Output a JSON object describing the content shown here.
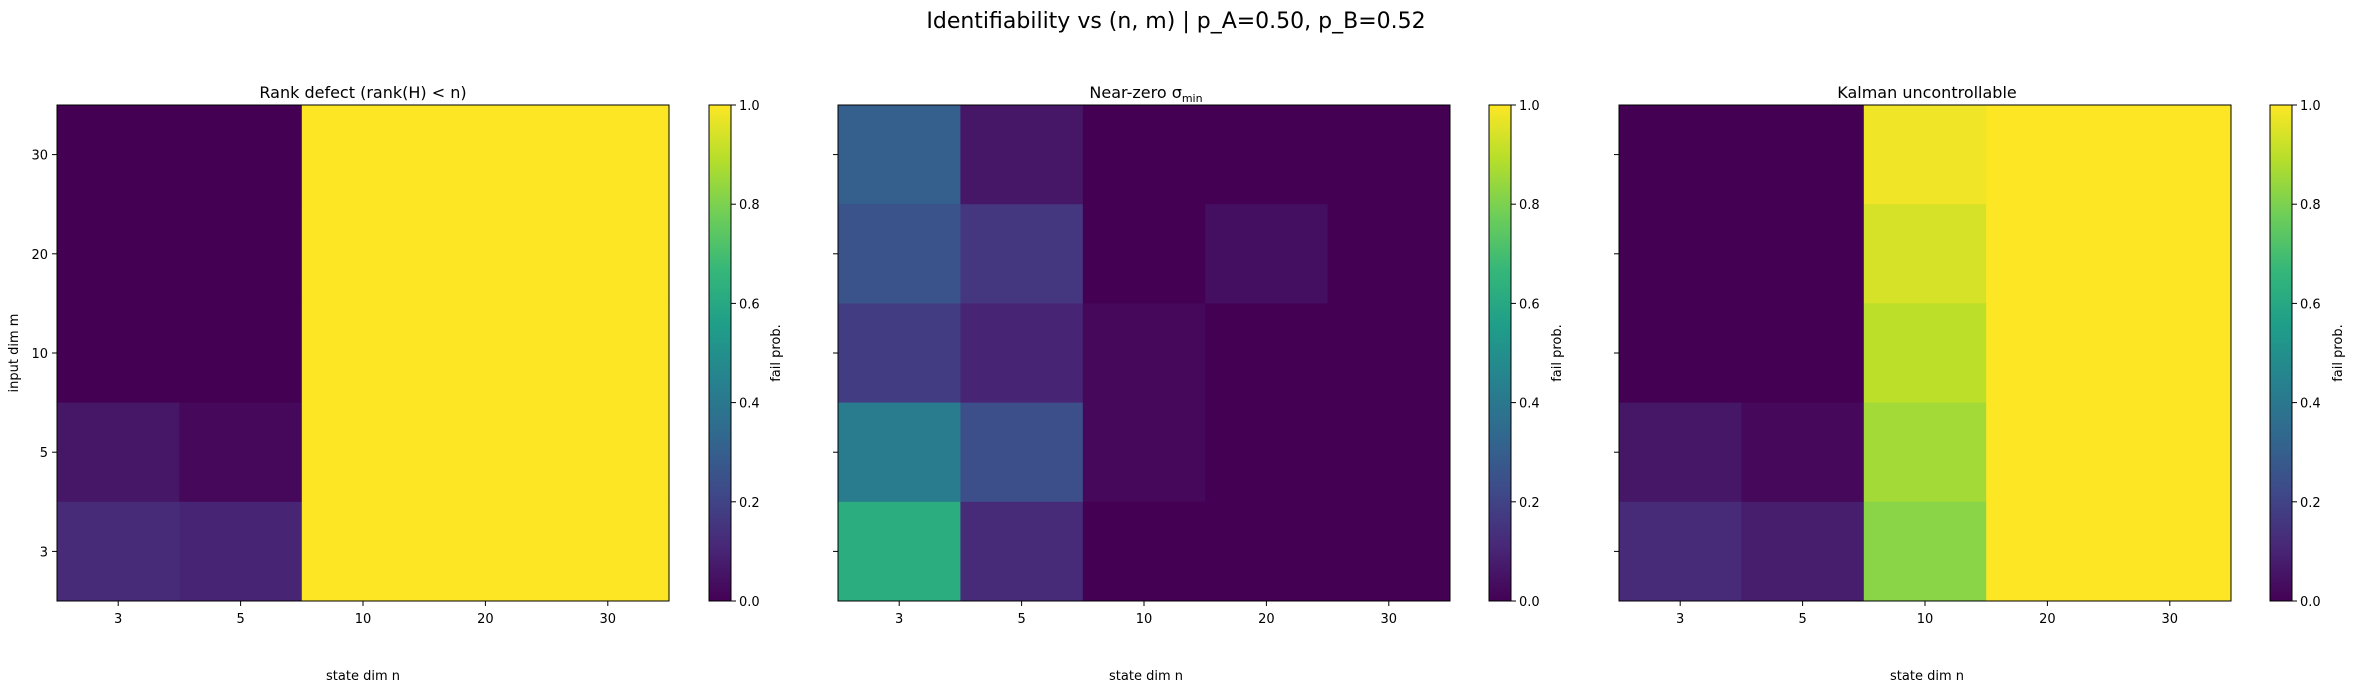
{
  "suptitle": "Identifiability vs (n, m)  |  p_A=0.50, p_B=0.52",
  "colormap": "viridis",
  "chart_data": [
    {
      "type": "heatmap",
      "title": "Rank defect  (rank(H) < n)",
      "xlabel": "state dim n",
      "ylabel": "input dim m",
      "x_categories": [
        "3",
        "5",
        "10",
        "20",
        "30"
      ],
      "y_categories": [
        "30",
        "20",
        "10",
        "5",
        "3"
      ],
      "values": [
        [
          0.0,
          0.0,
          1.0,
          1.0,
          1.0
        ],
        [
          0.0,
          0.0,
          1.0,
          1.0,
          1.0
        ],
        [
          0.0,
          0.0,
          1.0,
          1.0,
          1.0
        ],
        [
          0.06,
          0.02,
          1.0,
          1.0,
          1.0
        ],
        [
          0.12,
          0.1,
          1.0,
          1.0,
          1.0
        ]
      ],
      "colorbar": {
        "label": "fail prob.",
        "range": [
          0.0,
          1.0
        ],
        "ticks": [
          "0.0",
          "0.2",
          "0.4",
          "0.6",
          "0.8",
          "1.0"
        ]
      }
    },
    {
      "type": "heatmap",
      "title_main": "Near-zero σ",
      "title_sub": "min",
      "xlabel": "state dim n",
      "ylabel": "",
      "x_categories": [
        "3",
        "5",
        "10",
        "20",
        "30"
      ],
      "y_categories": [
        "30",
        "20",
        "10",
        "5",
        "3"
      ],
      "values": [
        [
          0.3,
          0.06,
          0.0,
          0.0,
          0.0
        ],
        [
          0.26,
          0.16,
          0.0,
          0.04,
          0.0
        ],
        [
          0.18,
          0.1,
          0.02,
          0.0,
          0.0
        ],
        [
          0.42,
          0.24,
          0.02,
          0.0,
          0.0
        ],
        [
          0.62,
          0.12,
          0.0,
          0.0,
          0.0
        ]
      ],
      "colorbar": {
        "label": "fail prob.",
        "range": [
          0.0,
          1.0
        ],
        "ticks": [
          "0.0",
          "0.2",
          "0.4",
          "0.6",
          "0.8",
          "1.0"
        ]
      }
    },
    {
      "type": "heatmap",
      "title": "Kalman uncontrollable",
      "xlabel": "state dim n",
      "ylabel": "",
      "x_categories": [
        "3",
        "5",
        "10",
        "20",
        "30"
      ],
      "y_categories": [
        "30",
        "20",
        "10",
        "5",
        "3"
      ],
      "values": [
        [
          0.0,
          0.0,
          0.98,
          1.0,
          1.0
        ],
        [
          0.0,
          0.0,
          0.94,
          1.0,
          1.0
        ],
        [
          0.0,
          0.0,
          0.9,
          1.0,
          1.0
        ],
        [
          0.06,
          0.02,
          0.86,
          1.0,
          1.0
        ],
        [
          0.12,
          0.08,
          0.82,
          1.0,
          1.0
        ]
      ],
      "colorbar": {
        "label": "fail prob.",
        "range": [
          0.0,
          1.0
        ],
        "ticks": [
          "0.0",
          "0.2",
          "0.4",
          "0.6",
          "0.8",
          "1.0"
        ]
      }
    }
  ]
}
